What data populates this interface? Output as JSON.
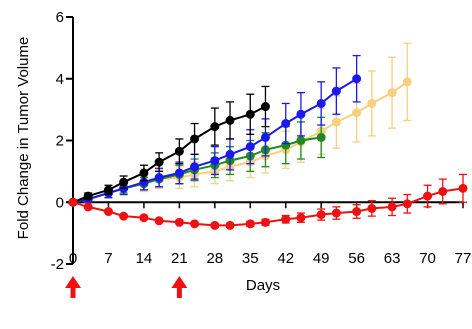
{
  "chart_data": {
    "type": "line",
    "xlabel": "Days",
    "ylabel": "Fold Change in Tumor Volume",
    "xlim": [
      0,
      77
    ],
    "ylim": [
      -2,
      6
    ],
    "x_ticks": [
      0,
      7,
      14,
      21,
      28,
      35,
      42,
      49,
      56,
      63,
      70,
      77
    ],
    "y_ticks": [
      -2,
      0,
      2,
      4,
      6
    ],
    "grid": false,
    "legend": "none",
    "annotations": [
      {
        "type": "arrow",
        "x": 0,
        "color": "#ee1111"
      },
      {
        "type": "arrow",
        "x": 21,
        "color": "#ee1111"
      }
    ],
    "series": [
      {
        "color": "#f7cf7e",
        "x": [
          0,
          3,
          7,
          10,
          14,
          17,
          21,
          24,
          28,
          31,
          35,
          38,
          42,
          45,
          49,
          52,
          56,
          59,
          63,
          66
        ],
        "y": [
          0,
          0.1,
          0.3,
          0.45,
          0.6,
          0.75,
          0.8,
          0.9,
          1.0,
          1.15,
          1.3,
          1.5,
          1.7,
          1.95,
          2.3,
          2.6,
          2.9,
          3.2,
          3.55,
          3.9
        ],
        "err": [
          0,
          0.1,
          0.15,
          0.2,
          0.25,
          0.3,
          0.35,
          0.4,
          0.4,
          0.45,
          0.5,
          0.55,
          0.6,
          0.65,
          0.75,
          0.85,
          0.95,
          1.05,
          1.15,
          1.25
        ]
      },
      {
        "color": "#228822",
        "x": [
          0,
          3,
          7,
          10,
          14,
          17,
          21,
          24,
          28,
          31,
          35,
          38,
          42,
          45,
          49
        ],
        "y": [
          0,
          0.1,
          0.3,
          0.45,
          0.6,
          0.75,
          0.9,
          1.05,
          1.2,
          1.35,
          1.5,
          1.7,
          1.85,
          2.0,
          2.1
        ],
        "err": [
          0,
          0.1,
          0.15,
          0.15,
          0.2,
          0.25,
          0.3,
          0.35,
          0.4,
          0.45,
          0.5,
          0.55,
          0.6,
          0.6,
          0.65
        ]
      },
      {
        "color": "#1a1aee",
        "x": [
          0,
          3,
          7,
          10,
          14,
          17,
          21,
          24,
          28,
          31,
          35,
          38,
          42,
          45,
          49,
          52,
          56
        ],
        "y": [
          0,
          0.1,
          0.3,
          0.45,
          0.65,
          0.8,
          0.95,
          1.15,
          1.35,
          1.55,
          1.8,
          2.1,
          2.55,
          2.85,
          3.2,
          3.6,
          4.0
        ],
        "err": [
          0,
          0.1,
          0.15,
          0.2,
          0.25,
          0.3,
          0.35,
          0.4,
          0.45,
          0.5,
          0.55,
          0.6,
          0.65,
          0.7,
          0.7,
          0.75,
          0.75
        ]
      },
      {
        "color": "#000000",
        "x": [
          0,
          3,
          7,
          10,
          14,
          17,
          21,
          24,
          28,
          31,
          35,
          38
        ],
        "y": [
          0,
          0.2,
          0.4,
          0.65,
          0.95,
          1.3,
          1.65,
          2.05,
          2.45,
          2.65,
          2.85,
          3.1
        ],
        "err": [
          0,
          0.1,
          0.15,
          0.2,
          0.25,
          0.3,
          0.4,
          0.5,
          0.6,
          0.6,
          0.65,
          0.65
        ]
      },
      {
        "color": "#ee1111",
        "x": [
          0,
          3,
          7,
          10,
          14,
          17,
          21,
          24,
          28,
          31,
          35,
          38,
          42,
          45,
          49,
          52,
          56,
          59,
          63,
          66,
          70,
          73,
          77
        ],
        "y": [
          0,
          -0.15,
          -0.3,
          -0.45,
          -0.5,
          -0.6,
          -0.65,
          -0.7,
          -0.75,
          -0.75,
          -0.7,
          -0.65,
          -0.55,
          -0.5,
          -0.4,
          -0.35,
          -0.3,
          -0.2,
          -0.15,
          -0.05,
          0.2,
          0.35,
          0.45
        ],
        "err": [
          0,
          0.05,
          0.05,
          0.05,
          0.05,
          0.05,
          0.05,
          0.05,
          0.06,
          0.06,
          0.08,
          0.1,
          0.12,
          0.15,
          0.18,
          0.2,
          0.22,
          0.25,
          0.28,
          0.3,
          0.35,
          0.4,
          0.45
        ]
      }
    ]
  }
}
